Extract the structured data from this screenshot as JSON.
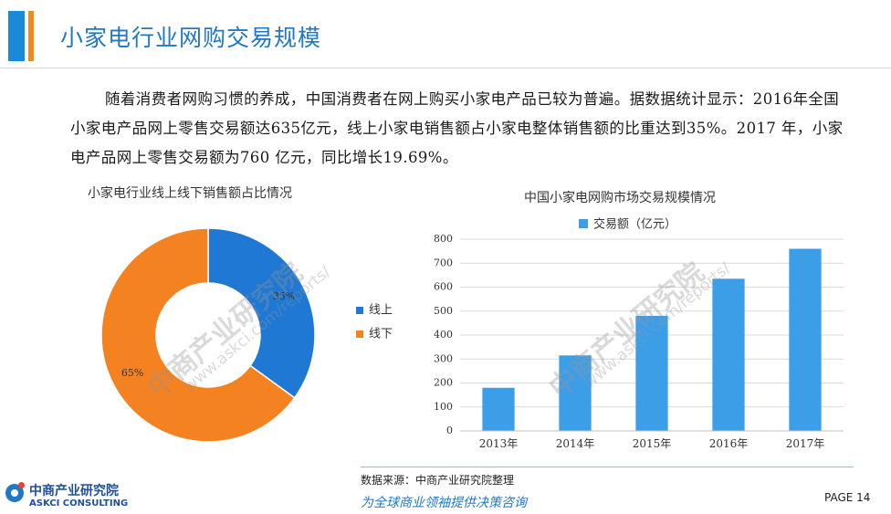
{
  "header": {
    "title": "小家电行业网购交易规模"
  },
  "paragraph": "随着消费者网购习惯的养成，中国消费者在网上购买小家电产品已较为普遍。据数据统计显示：2016年全国小家电产品网上零售交易额达635亿元，线上小家电销售额占小家电整体销售额的比重达到35%。2017 年，小家电产品网上零售交易额为760 亿元，同比增长19.69%。",
  "chart_data": [
    {
      "type": "pie",
      "title": "小家电行业线上线下销售额占比情况",
      "donut": true,
      "slices": [
        {
          "label": "线上",
          "value": 35,
          "display": "35%",
          "color": "#1f78d4"
        },
        {
          "label": "线下",
          "value": 65,
          "display": "65%",
          "color": "#f58220"
        }
      ],
      "legend_position": "right"
    },
    {
      "type": "bar",
      "title": "中国小家电网购市场交易规模情况",
      "categories": [
        "2013年",
        "2014年",
        "2015年",
        "2016年",
        "2017年"
      ],
      "series": [
        {
          "name": "交易额（亿元）",
          "values": [
            180,
            315,
            480,
            635,
            760
          ],
          "color": "#3d9ee8"
        }
      ],
      "ylim": [
        0,
        800
      ],
      "yticks": [
        "0",
        "100",
        "200",
        "300",
        "400",
        "500",
        "600",
        "700",
        "800"
      ],
      "grid": true,
      "legend_position": "top"
    }
  ],
  "footer": {
    "source": "数据来源：中商产业研究院整理",
    "slogan": "为全球商业领袖提供决策咨询",
    "page": "PAGE  14",
    "logo_cn": "中商产业研究院",
    "logo_en": "ASKCI CONSULTING"
  },
  "watermark": {
    "name": "中商产业研究院",
    "url": "www.askci.com/reports/"
  }
}
